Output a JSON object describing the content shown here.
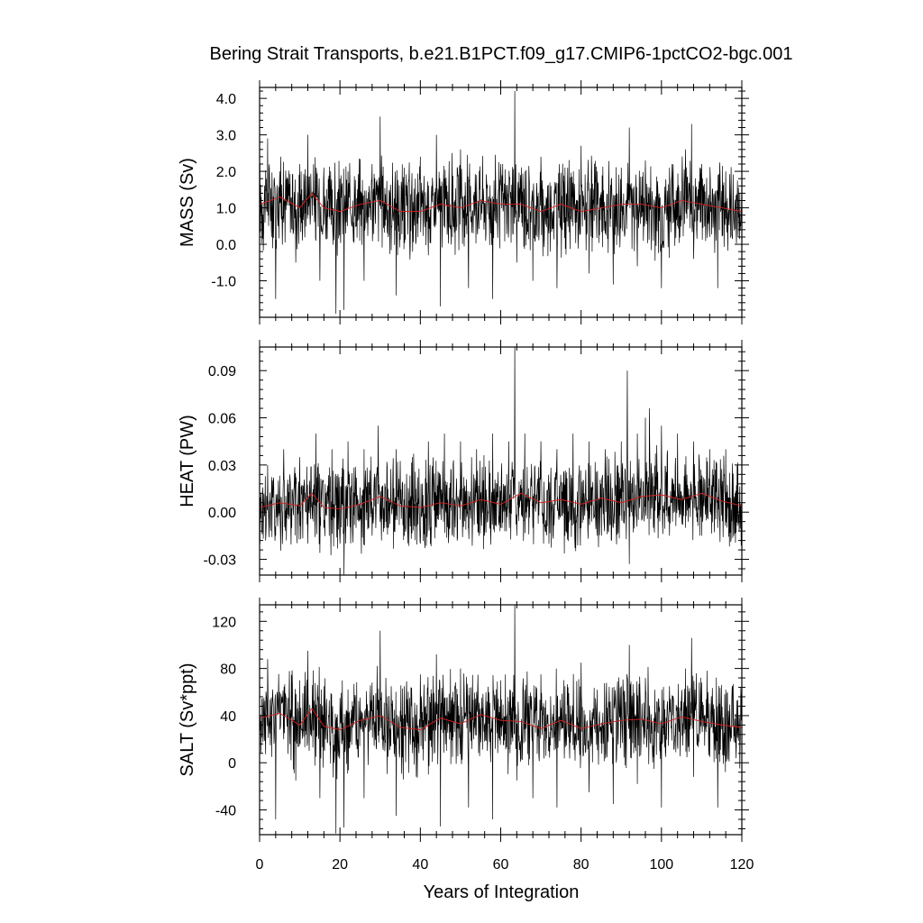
{
  "title": "Bering Strait Transports, b.e21.B1PCT.f09_g17.CMIP6-1pctCO2-bgc.001",
  "colors": {
    "raw": "#000000",
    "smooth": "#d62020"
  },
  "chart_data": [
    {
      "type": "line",
      "panel": "mass",
      "ylabel": "MASS (Sv)",
      "xlim": [
        0,
        120
      ],
      "ylim": [
        -2.0,
        4.3
      ],
      "yticks": [
        -1.0,
        0.0,
        1.0,
        2.0,
        3.0,
        4.0
      ],
      "ytick_labels": [
        "-1.0",
        "0.0",
        "1.0",
        "2.0",
        "3.0",
        "4.0"
      ],
      "xticks": [
        0,
        20,
        40,
        60,
        80,
        100,
        120
      ],
      "series": [
        {
          "role": "monthly",
          "x": [
            0,
            2,
            3,
            4,
            5,
            6,
            7,
            9,
            10,
            12,
            14,
            15,
            16,
            18,
            19,
            20,
            21,
            22,
            24,
            26,
            28,
            30,
            32,
            34,
            36,
            38,
            40,
            42,
            44,
            45,
            46,
            48,
            50,
            52,
            54,
            56,
            58,
            60,
            62,
            63.5,
            64,
            66,
            68,
            70,
            72,
            74,
            76,
            78,
            80,
            82,
            84,
            86,
            88,
            90,
            92,
            94,
            96,
            98,
            100,
            102,
            104,
            106,
            107.5,
            108,
            110,
            112,
            114,
            116,
            118,
            120
          ],
          "values": [
            1.2,
            2.9,
            0.2,
            -1.5,
            2.0,
            0.6,
            1.8,
            -0.5,
            2.2,
            3.0,
            0.1,
            -1.0,
            2.1,
            0.8,
            -1.9,
            1.8,
            -1.8,
            2.0,
            0.5,
            -1.0,
            2.2,
            3.5,
            0.2,
            -1.4,
            2.1,
            0.5,
            2.4,
            -0.3,
            3.0,
            -1.7,
            1.8,
            0.2,
            2.6,
            -1.2,
            1.9,
            0.6,
            -1.5,
            2.2,
            0.4,
            4.2,
            -0.5,
            2.0,
            -1.0,
            2.4,
            0.3,
            -1.2,
            2.1,
            0.5,
            2.7,
            -0.8,
            2.0,
            0.3,
            -1.1,
            2.1,
            3.2,
            -0.6,
            2.3,
            0.1,
            -1.2,
            2.1,
            0.5,
            2.6,
            3.3,
            -0.4,
            2.2,
            0.2,
            -1.2,
            2.0,
            0.6,
            1.8
          ]
        },
        {
          "role": "annual-mean",
          "x": [
            0,
            5,
            10,
            13,
            16,
            20,
            25,
            30,
            35,
            40,
            45,
            50,
            55,
            60,
            65,
            70,
            75,
            80,
            85,
            90,
            95,
            100,
            105,
            110,
            115,
            120
          ],
          "values": [
            1.1,
            1.3,
            1.0,
            1.4,
            1.0,
            0.9,
            1.1,
            1.2,
            0.9,
            0.9,
            1.1,
            1.0,
            1.2,
            1.1,
            1.1,
            0.9,
            1.1,
            0.9,
            1.0,
            1.1,
            1.1,
            1.0,
            1.2,
            1.1,
            1.0,
            0.9
          ]
        }
      ]
    },
    {
      "type": "line",
      "panel": "heat",
      "ylabel": "HEAT (PW)",
      "xlim": [
        0,
        120
      ],
      "ylim": [
        -0.04,
        0.105
      ],
      "yticks": [
        -0.03,
        0.0,
        0.03,
        0.06,
        0.09
      ],
      "ytick_labels": [
        "-0.03",
        "0.00",
        "0.03",
        "0.06",
        "0.09"
      ],
      "xticks": [
        0,
        20,
        40,
        60,
        80,
        100,
        120
      ],
      "series": [
        {
          "role": "monthly",
          "x": [
            0,
            2,
            4,
            6,
            8,
            10,
            12,
            14,
            16,
            18,
            20,
            21,
            22,
            24,
            26,
            28,
            29.5,
            32,
            34,
            36,
            38,
            40,
            42,
            44,
            46,
            48,
            50,
            52,
            54,
            56,
            58,
            60,
            62,
            63.5,
            64,
            66,
            68,
            70,
            72,
            74,
            76,
            78,
            80,
            82,
            84,
            86,
            88,
            90,
            91.5,
            92,
            94,
            96,
            97,
            98,
            100,
            102,
            104,
            106,
            108,
            110,
            112,
            114,
            116,
            118,
            120
          ],
          "values": [
            -0.01,
            0.03,
            -0.015,
            0.04,
            -0.01,
            0.035,
            -0.02,
            0.05,
            -0.01,
            0.04,
            -0.02,
            -0.04,
            0.045,
            -0.01,
            0.04,
            -0.015,
            0.055,
            -0.01,
            0.04,
            -0.015,
            0.035,
            -0.02,
            0.045,
            -0.01,
            0.05,
            -0.015,
            0.045,
            -0.01,
            0.04,
            -0.015,
            0.05,
            -0.01,
            0.045,
            0.105,
            -0.015,
            0.05,
            -0.01,
            0.045,
            -0.02,
            0.04,
            -0.015,
            0.05,
            -0.01,
            0.045,
            -0.015,
            0.04,
            -0.01,
            0.045,
            0.09,
            -0.033,
            0.05,
            0.06,
            0.066,
            -0.01,
            0.055,
            -0.015,
            0.05,
            -0.01,
            0.045,
            -0.015,
            0.04,
            -0.01,
            0.04,
            -0.015,
            0.055
          ]
        },
        {
          "role": "annual-mean",
          "x": [
            0,
            5,
            10,
            13,
            16,
            20,
            25,
            30,
            35,
            40,
            45,
            50,
            55,
            60,
            65,
            70,
            75,
            80,
            85,
            90,
            95,
            100,
            105,
            110,
            115,
            120
          ],
          "values": [
            0.003,
            0.006,
            0.004,
            0.012,
            0.003,
            0.002,
            0.005,
            0.01,
            0.004,
            0.003,
            0.006,
            0.004,
            0.008,
            0.005,
            0.012,
            0.006,
            0.008,
            0.005,
            0.009,
            0.006,
            0.01,
            0.011,
            0.008,
            0.012,
            0.007,
            0.004
          ]
        }
      ]
    },
    {
      "type": "line",
      "panel": "salt",
      "ylabel": "SALT (Sv*ppt)",
      "xlim": [
        0,
        120
      ],
      "ylim": [
        -61,
        134
      ],
      "yticks": [
        -40,
        0,
        40,
        80,
        120
      ],
      "ytick_labels": [
        "-40",
        "0",
        "40",
        "80",
        "120"
      ],
      "xticks": [
        0,
        20,
        40,
        60,
        80,
        100,
        120
      ],
      "series": [
        {
          "role": "monthly",
          "x": [
            0,
            2,
            3,
            4,
            5,
            6,
            7,
            9,
            10,
            12,
            14,
            15,
            16,
            18,
            19,
            20,
            21,
            22,
            24,
            26,
            28,
            30,
            32,
            34,
            36,
            38,
            40,
            42,
            44,
            45,
            46,
            48,
            50,
            52,
            54,
            56,
            58,
            60,
            62,
            63.5,
            64,
            66,
            68,
            70,
            72,
            74,
            76,
            78,
            80,
            82,
            84,
            86,
            88,
            90,
            92,
            94,
            96,
            98,
            100,
            102,
            104,
            106,
            107.5,
            108,
            110,
            112,
            114,
            116,
            118,
            120
          ],
          "values": [
            40,
            88,
            5,
            -48,
            60,
            20,
            55,
            -15,
            70,
            95,
            5,
            -30,
            65,
            25,
            -60,
            55,
            -55,
            62,
            15,
            -30,
            68,
            112,
            5,
            -45,
            65,
            15,
            75,
            -10,
            92,
            -54,
            55,
            5,
            80,
            -38,
            60,
            18,
            -48,
            70,
            12,
            134,
            -15,
            62,
            -30,
            75,
            10,
            -38,
            65,
            15,
            85,
            -25,
            62,
            10,
            -35,
            65,
            100,
            -18,
            72,
            5,
            -38,
            65,
            15,
            80,
            106,
            -12,
            68,
            5,
            -38,
            62,
            18,
            55
          ]
        },
        {
          "role": "annual-mean",
          "x": [
            0,
            5,
            10,
            13,
            16,
            20,
            25,
            30,
            35,
            40,
            45,
            50,
            55,
            60,
            65,
            70,
            75,
            80,
            85,
            90,
            95,
            100,
            105,
            110,
            115,
            120
          ],
          "values": [
            38,
            42,
            32,
            46,
            31,
            28,
            36,
            40,
            30,
            28,
            38,
            33,
            41,
            36,
            35,
            29,
            36,
            29,
            33,
            36,
            37,
            33,
            39,
            35,
            32,
            30
          ]
        }
      ]
    }
  ],
  "x_axis": {
    "xlabel": "Years of Integration",
    "tick_labels": [
      "0",
      "20",
      "40",
      "60",
      "80",
      "100",
      "120"
    ]
  }
}
